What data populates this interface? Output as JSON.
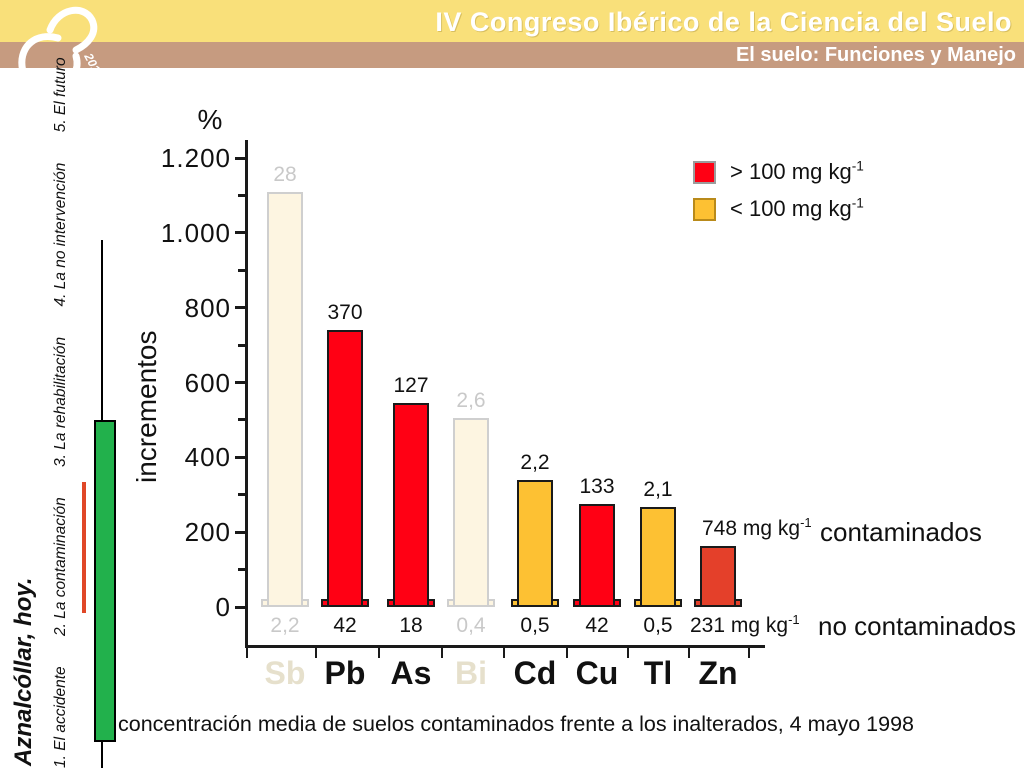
{
  "header": {
    "title": "IV Congreso Ibérico de la Ciencia del Suelo",
    "subtitle": "El suelo: Funciones y Manejo",
    "band_color": "#F9E07A",
    "subband_color": "#C69B80",
    "logo_year": "2010"
  },
  "sidebar": {
    "title": "Aznalcóllar, hoy.",
    "items": [
      {
        "label": "1. El accidente"
      },
      {
        "label": "2. La contaminación"
      },
      {
        "label": "3. La rehabilitación"
      },
      {
        "label": "4. La no intervención"
      },
      {
        "label": "5. El futuro"
      }
    ],
    "timeline_green": "#22B14C",
    "timeline_red": "#E04727"
  },
  "chart_data": {
    "type": "bar",
    "y_unit": "%",
    "ylabel": "incrementos",
    "ylim": [
      0,
      1200
    ],
    "y_tick_step_minor": 100,
    "y_tick_labels": [
      "0",
      "200",
      "400",
      "600",
      "800",
      "1.000",
      "1.200"
    ],
    "categories": [
      "Sb",
      "Pb",
      "As",
      "Bi",
      "Cd",
      "Cu",
      "Tl",
      "Zn"
    ],
    "bars": [
      {
        "element": "Sb",
        "increment_pct": 1110,
        "contaminated": "28",
        "uncontaminated": "2,2",
        "color": "#FDF5E1",
        "muted": true
      },
      {
        "element": "Pb",
        "increment_pct": 740,
        "contaminated": "370",
        "uncontaminated": "42",
        "color": "#FF0014",
        "muted": false
      },
      {
        "element": "As",
        "increment_pct": 545,
        "contaminated": "127",
        "uncontaminated": "18",
        "color": "#FF0014",
        "muted": false
      },
      {
        "element": "Bi",
        "increment_pct": 505,
        "contaminated": "2,6",
        "uncontaminated": "0,4",
        "color": "#FDF5E1",
        "muted": true
      },
      {
        "element": "Cd",
        "increment_pct": 340,
        "contaminated": "2,2",
        "uncontaminated": "0,5",
        "color": "#FDC133",
        "muted": false
      },
      {
        "element": "Cu",
        "increment_pct": 275,
        "contaminated": "133",
        "uncontaminated": "42",
        "color": "#FF0014",
        "muted": false
      },
      {
        "element": "Tl",
        "increment_pct": 267,
        "contaminated": "2,1",
        "uncontaminated": "0,5",
        "color": "#FDC133",
        "muted": false
      },
      {
        "element": "Zn",
        "increment_pct": 163,
        "contaminated": "748",
        "uncontaminated": "231",
        "color": "#E4402A",
        "muted": false,
        "top_unit": "mg kg",
        "top_unit_exp": "-1",
        "bottom_unit": "mg kg",
        "bottom_unit_exp": "-1"
      }
    ],
    "legend": {
      "position": "upper-right",
      "items": [
        {
          "label": "> 100 mg kg",
          "exp": "-1",
          "color": "#FF0014",
          "border": "#9C9C9C"
        },
        {
          "label": "< 100 mg kg",
          "exp": "-1",
          "color": "#FDC133",
          "border": "#B98A1A"
        }
      ]
    },
    "row_labels": {
      "top": "contaminados",
      "bottom": "no contaminados"
    },
    "grid": false
  },
  "caption": "concentración media de suelos contaminados frente a los inalterados, 4 mayo 1998"
}
